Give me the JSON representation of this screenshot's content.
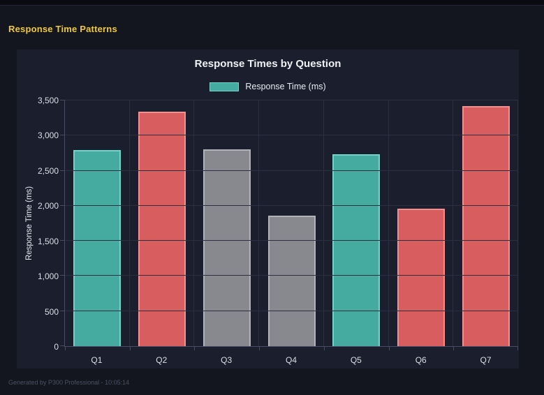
{
  "window": {
    "header_title": "Response Time Patterns",
    "footer": "Generated by P300 Professional - 10:05:14"
  },
  "chart_data": {
    "type": "bar",
    "title": "Response Times by Question",
    "xlabel": "",
    "ylabel": "Response Time (ms)",
    "legend_position": "top",
    "grid": true,
    "legend": [
      {
        "label": "Response Time (ms)",
        "color": "#45aba1",
        "border_color": "#73d3c8"
      }
    ],
    "categories": [
      "Q1",
      "Q2",
      "Q3",
      "Q4",
      "Q5",
      "Q6",
      "Q7"
    ],
    "values": [
      2790,
      3340,
      2800,
      1860,
      2730,
      1960,
      3420
    ],
    "bar_colors": [
      "#45aba1",
      "#d85d5e",
      "#88888f",
      "#88888f",
      "#45aba1",
      "#d85d5e",
      "#d85d5e"
    ],
    "bar_border_colors": [
      "#73d3c8",
      "#f09090",
      "#b2b2ba",
      "#b2b2ba",
      "#73d3c8",
      "#f09090",
      "#f09090"
    ],
    "ylim": [
      0,
      3500
    ],
    "yticks": [
      {
        "label": "0",
        "value": 0
      },
      {
        "label": "500",
        "value": 500
      },
      {
        "label": "1,000",
        "value": 1000
      },
      {
        "label": "1,500",
        "value": 1500
      },
      {
        "label": "2,000",
        "value": 2000
      },
      {
        "label": "2,500",
        "value": 2500
      },
      {
        "label": "3,000",
        "value": 3000
      },
      {
        "label": "3,500",
        "value": 3500
      }
    ]
  },
  "colors": {
    "page_bg": "#14161f",
    "strip_bg": "#0a0b10",
    "panel_bg": "#1b1e2d",
    "header_yellow": "#efc937",
    "grid_color": "#2c2f42",
    "axis_color": "#484c63",
    "teal": "#45aba1",
    "red": "#d85d5e",
    "gray": "#88888f"
  }
}
